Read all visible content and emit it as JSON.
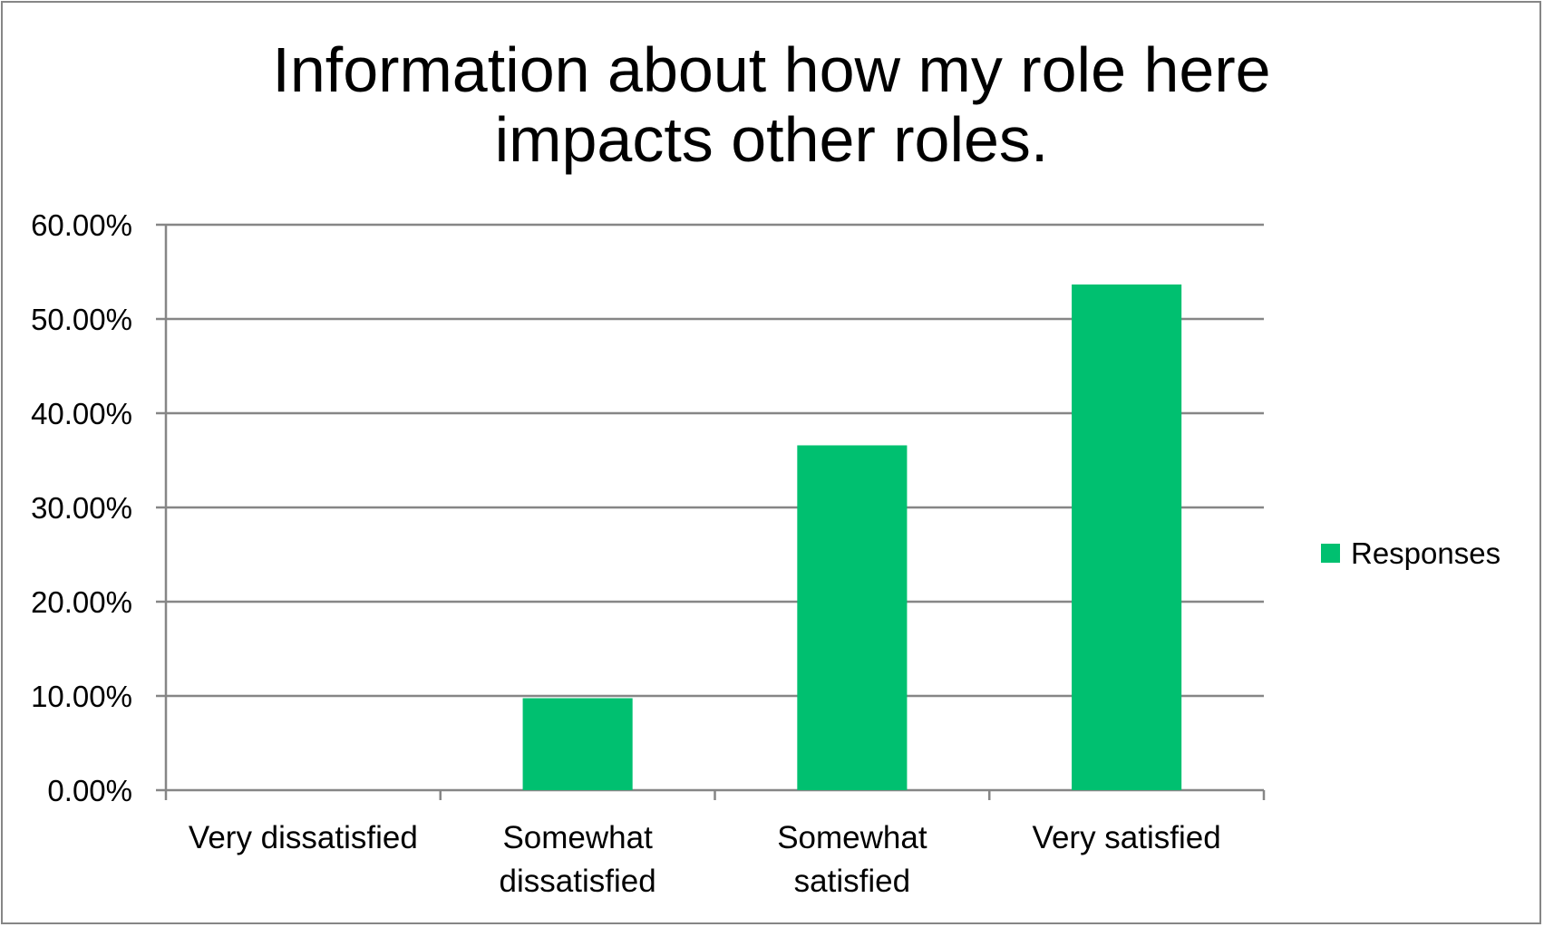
{
  "chart_data": {
    "type": "bar",
    "title_lines": [
      "Information about how my role here",
      "impacts other roles."
    ],
    "categories": [
      [
        "Very dissatisfied"
      ],
      [
        "Somewhat",
        "dissatisfied"
      ],
      [
        "Somewhat",
        "satisfied"
      ],
      [
        "Very satisfied"
      ]
    ],
    "series": [
      {
        "name": "Responses",
        "values": [
          0,
          9.76,
          36.59,
          53.66
        ],
        "color": "#00C070"
      }
    ],
    "yticks": [
      "0.00%",
      "10.00%",
      "20.00%",
      "30.00%",
      "40.00%",
      "50.00%",
      "60.00%"
    ],
    "ylim": [
      0,
      60
    ],
    "grid": true,
    "legend_position": "right",
    "gridline_color": "#868686",
    "axis_color": "#868686"
  }
}
